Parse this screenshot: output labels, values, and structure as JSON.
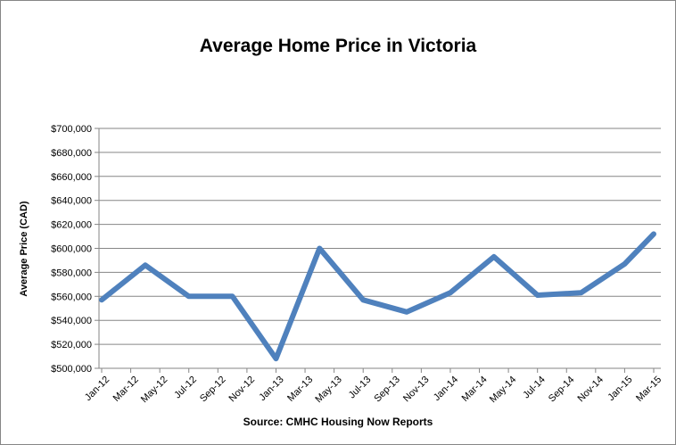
{
  "chart_data": {
    "type": "line",
    "title": "Average Home Price in Victoria",
    "xlabel": "",
    "ylabel": "Average Price  (CAD)",
    "source": "Source: CMHC Housing Now Reports",
    "categories": [
      "Jan-12",
      "Mar-12",
      "May-12",
      "Jul-12",
      "Sep-12",
      "Nov-12",
      "Jan-13",
      "Mar-13",
      "May-13",
      "Jul-13",
      "Sep-13",
      "Nov-13",
      "Jan-14",
      "Mar-14",
      "May-14",
      "Jul-14",
      "Sep-14",
      "Nov-14",
      "Jan-15",
      "Mar-15"
    ],
    "x_tick_labels": [
      "Jan-12",
      "Mar-12",
      "May-12",
      "Jul-12",
      "Sep-12",
      "Nov-12",
      "Jan-13",
      "Mar-13",
      "May-13",
      "Jul-13",
      "Sep-13",
      "Nov-13",
      "Jan-14",
      "Mar-14",
      "May-14",
      "Jul-14",
      "Sep-14",
      "Nov-14",
      "Jan-15",
      "Mar-15"
    ],
    "points": [
      {
        "x": "Jan-12",
        "y": 557000
      },
      {
        "x": "Apr-12",
        "y": 586000
      },
      {
        "x": "Jul-12",
        "y": 560000
      },
      {
        "x": "Oct-12",
        "y": 560000
      },
      {
        "x": "Jan-13",
        "y": 508000
      },
      {
        "x": "Apr-13",
        "y": 600000
      },
      {
        "x": "Jul-13",
        "y": 557000
      },
      {
        "x": "Oct-13",
        "y": 547000
      },
      {
        "x": "Jan-14",
        "y": 563000
      },
      {
        "x": "Apr-14",
        "y": 593000
      },
      {
        "x": "Jul-14",
        "y": 561000
      },
      {
        "x": "Oct-14",
        "y": 563000
      },
      {
        "x": "Jan-15",
        "y": 587000
      },
      {
        "x": "Mar-15",
        "y": 612000
      }
    ],
    "y_ticks": [
      500000,
      520000,
      540000,
      560000,
      580000,
      600000,
      620000,
      640000,
      660000,
      680000,
      700000
    ],
    "y_tick_labels": [
      "$500,000",
      "$520,000",
      "$540,000",
      "$560,000",
      "$580,000",
      "$600,000",
      "$620,000",
      "$640,000",
      "$660,000",
      "$680,000",
      "$700,000"
    ],
    "ylim": [
      500000,
      700000
    ],
    "grid": true,
    "legend": "none",
    "line_color": "#4F81BD"
  }
}
